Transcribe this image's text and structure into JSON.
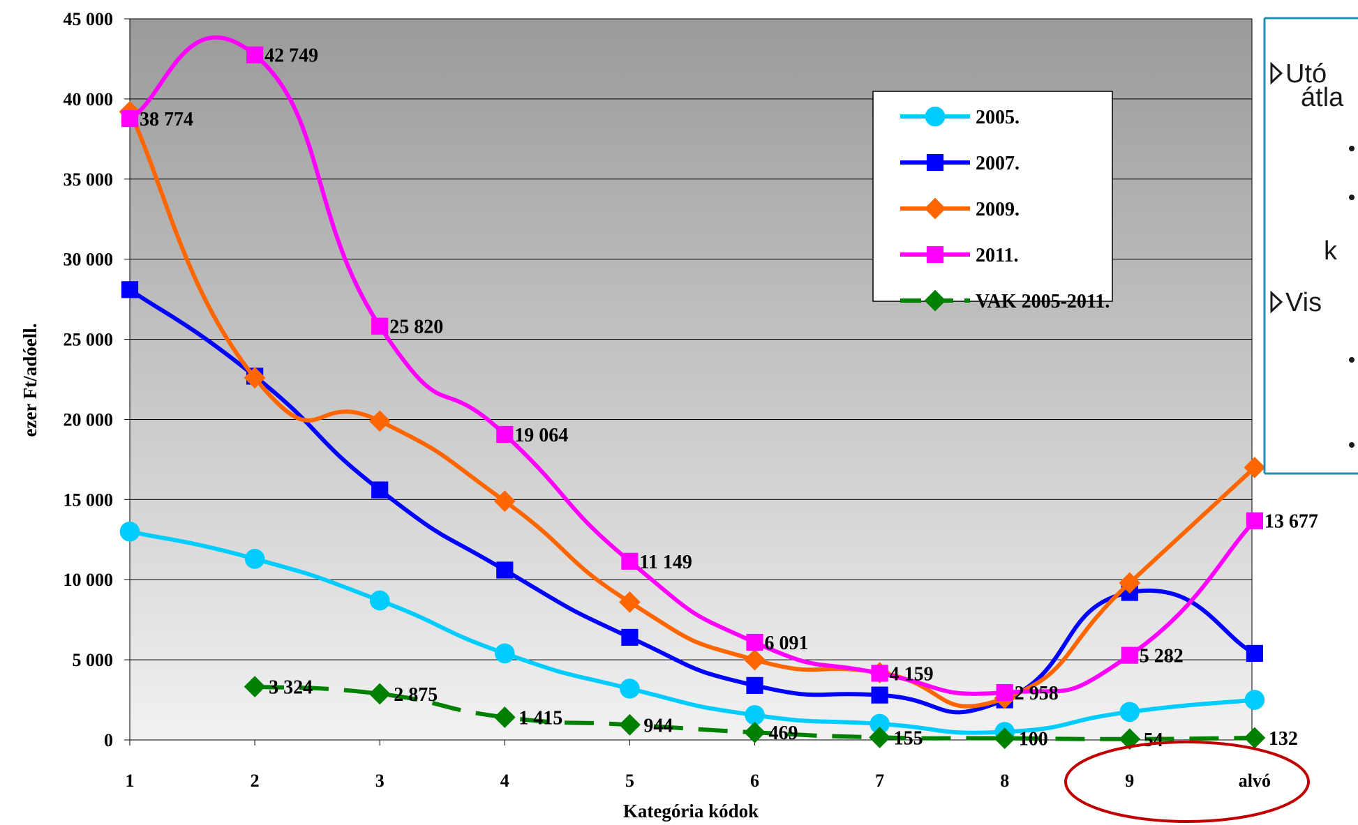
{
  "chart_data": {
    "type": "line",
    "title": "",
    "xlabel": "Kategória kódok",
    "ylabel": "ezer Ft/adóell.",
    "ylim": [
      0,
      45000
    ],
    "y_ticks": [
      "0",
      "5 000",
      "10 000",
      "15 000",
      "20 000",
      "25 000",
      "30 000",
      "35 000",
      "40 000",
      "45 000"
    ],
    "categories": [
      "1",
      "2",
      "3",
      "4",
      "5",
      "6",
      "7",
      "8",
      "9",
      "alvó"
    ],
    "grid": "horizontal",
    "legend_position": "top-right",
    "series": [
      {
        "name": "2005.",
        "color": "#00ccff",
        "marker": "circle",
        "dashed": false,
        "values": [
          13000,
          11300,
          8700,
          5400,
          3200,
          1550,
          1000,
          500,
          1750,
          2500
        ]
      },
      {
        "name": "2007.",
        "color": "#0000ff",
        "marker": "square",
        "dashed": false,
        "values": [
          28100,
          22700,
          15600,
          10600,
          6400,
          3400,
          2800,
          2500,
          9200,
          5400
        ]
      },
      {
        "name": "2009.",
        "color": "#ff6600",
        "marker": "diamond",
        "dashed": false,
        "values": [
          39200,
          22600,
          19900,
          14900,
          8600,
          5000,
          4200,
          2600,
          9800,
          17000
        ]
      },
      {
        "name": "2011.",
        "color": "#ff00ff",
        "marker": "square",
        "dashed": false,
        "values": [
          38774,
          42749,
          25820,
          19064,
          11149,
          6091,
          4159,
          2958,
          5282,
          13677
        ],
        "labels": [
          "38 774",
          "42 749",
          "25 820",
          "19 064",
          "11 149",
          "6 091",
          "4 159",
          "2 958",
          "5 282",
          "13 677"
        ]
      },
      {
        "name": "VAK 2005-2011.",
        "color": "#008000",
        "marker": "diamond",
        "dashed": true,
        "values": [
          null,
          3324,
          2875,
          1415,
          944,
          469,
          155,
          100,
          54,
          132
        ],
        "labels": [
          null,
          "3 324",
          "2 875",
          "1 415",
          "944",
          "469",
          "155",
          "100",
          "54",
          "132"
        ]
      }
    ]
  },
  "side_panel": {
    "line1": "Utó",
    "line2": "átla",
    "line3": "k",
    "line4": "Vis"
  },
  "colors": {
    "plot_bg_top": "#9a9a9a",
    "plot_bg_bottom": "#f2f2f2",
    "highlight_ellipse": "#c00000",
    "panel_border": "#1f8fb5"
  }
}
